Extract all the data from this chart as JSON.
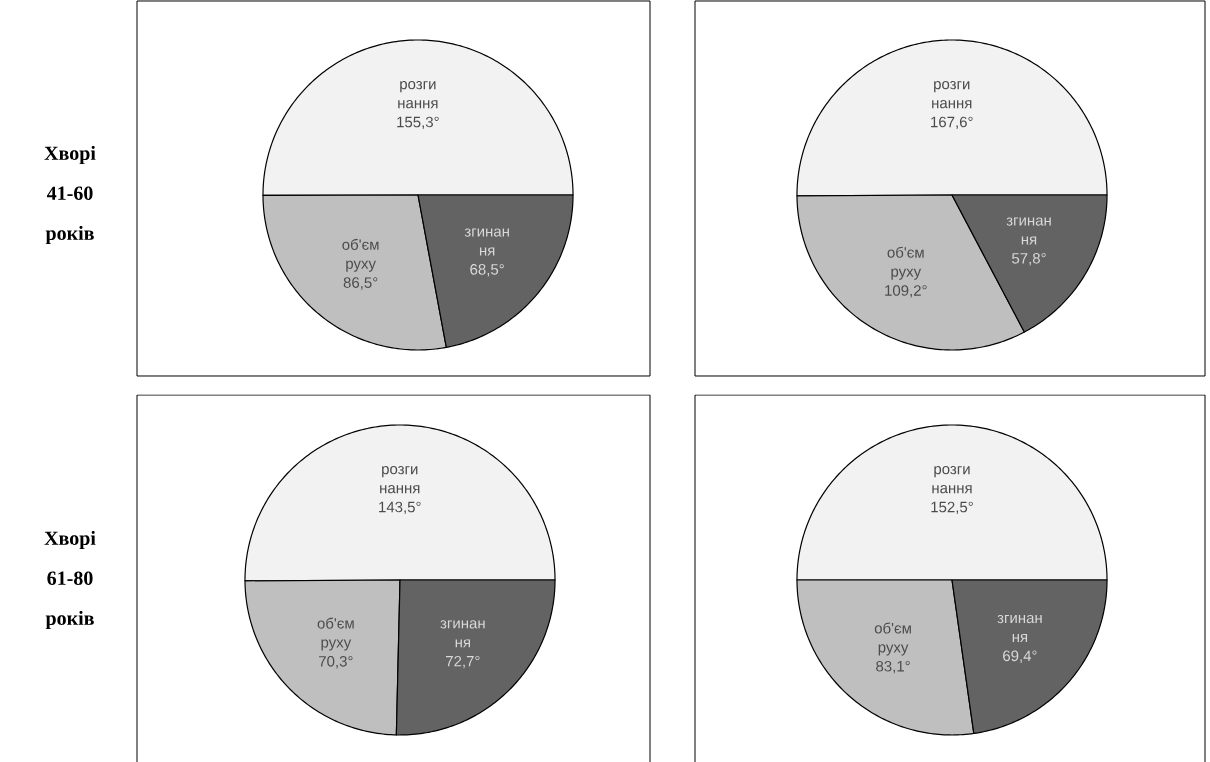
{
  "chart_data": [
    {
      "type": "pie",
      "categories": [
        "розги нання",
        "об'єм руху",
        "згинан ня"
      ],
      "values": [
        155.3,
        86.5,
        68.5
      ],
      "value_labels": [
        "155,3°",
        "86,5°",
        "68,5°"
      ],
      "colors": [
        "#f2f2f2",
        "#bfbfbf",
        "#636363"
      ],
      "annotations": [
        "Хворі 41-60 років"
      ]
    },
    {
      "type": "pie",
      "categories": [
        "розги нання",
        "об'єм руху",
        "згинан ня"
      ],
      "values": [
        167.6,
        109.2,
        57.8
      ],
      "value_labels": [
        "167,6°",
        "109,2°",
        "57,8°"
      ],
      "colors": [
        "#f2f2f2",
        "#bfbfbf",
        "#636363"
      ]
    },
    {
      "type": "pie",
      "categories": [
        "розги нання",
        "об'єм руху",
        "згинан ня"
      ],
      "values": [
        143.5,
        70.3,
        72.7
      ],
      "value_labels": [
        "143,5°",
        "70,3°",
        "72,7°"
      ],
      "colors": [
        "#f2f2f2",
        "#bfbfbf",
        "#636363"
      ],
      "annotations": [
        "Хворі 61-80 років"
      ]
    },
    {
      "type": "pie",
      "categories": [
        "розги нання",
        "об'єм руху",
        "згинан ня"
      ],
      "values": [
        152.5,
        83.1,
        69.4
      ],
      "value_labels": [
        "152,5°",
        "83,1°",
        "69,4°"
      ],
      "colors": [
        "#f2f2f2",
        "#bfbfbf",
        "#636363"
      ]
    }
  ]
}
